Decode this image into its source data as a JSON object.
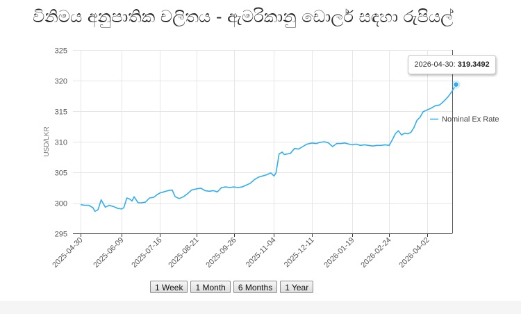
{
  "title": "විනිමය අනුපාතික චලිතය - ඇමරිකානු ඩොලර් සඳහා රුපියල්",
  "tooltip": {
    "date": "2026-04-30:",
    "value": "319.3492"
  },
  "buttons": [
    "1 Week",
    "1 Month",
    "6 Months",
    "1 Year"
  ],
  "colors": {
    "line": "#2eaef0",
    "grid": "#e6e6e6",
    "axis": "#333333"
  },
  "chart_data": {
    "type": "line",
    "title": "විනිමය අනුපාතික චලිතය - ඇමරිකානු ඩොලර් සඳහා රුපියල්",
    "ylabel": "USD/LKR",
    "xlabel": "",
    "ylim": [
      295,
      325
    ],
    "yticks": [
      295,
      300,
      305,
      310,
      315,
      320,
      325
    ],
    "xtick_labels": [
      "2025-04-30",
      "2025-06-09",
      "2025-07-16",
      "2025-08-21",
      "2025-09-26",
      "2025-11-04",
      "2025-12-11",
      "2026-01-19",
      "2026-02-24",
      "2026-04-02"
    ],
    "legend": {
      "position": "right",
      "entries": [
        "Nominal Ex Rate"
      ]
    },
    "grid": true,
    "series": [
      {
        "name": "Nominal Ex Rate",
        "x": [
          "2025-04-30",
          "2025-05-04",
          "2025-05-08",
          "2025-05-12",
          "2025-05-14",
          "2025-05-17",
          "2025-05-20",
          "2025-05-24",
          "2025-05-28",
          "2025-06-01",
          "2025-06-05",
          "2025-06-09",
          "2025-06-11",
          "2025-06-14",
          "2025-06-17",
          "2025-06-19",
          "2025-06-21",
          "2025-06-25",
          "2025-06-28",
          "2025-07-02",
          "2025-07-06",
          "2025-07-10",
          "2025-07-13",
          "2025-07-16",
          "2025-07-20",
          "2025-07-24",
          "2025-07-28",
          "2025-07-31",
          "2025-08-04",
          "2025-08-08",
          "2025-08-12",
          "2025-08-16",
          "2025-08-21",
          "2025-08-25",
          "2025-08-29",
          "2025-09-02",
          "2025-09-06",
          "2025-09-10",
          "2025-09-14",
          "2025-09-18",
          "2025-09-22",
          "2025-09-26",
          "2025-09-30",
          "2025-10-04",
          "2025-10-08",
          "2025-10-12",
          "2025-10-16",
          "2025-10-20",
          "2025-10-24",
          "2025-10-28",
          "2025-11-01",
          "2025-11-04",
          "2025-11-06",
          "2025-11-09",
          "2025-11-12",
          "2025-11-14",
          "2025-11-17",
          "2025-11-20",
          "2025-11-24",
          "2025-11-28",
          "2025-12-02",
          "2025-12-06",
          "2025-12-11",
          "2025-12-15",
          "2025-12-19",
          "2025-12-23",
          "2025-12-27",
          "2025-12-31",
          "2026-01-04",
          "2026-01-08",
          "2026-01-12",
          "2026-01-16",
          "2026-01-19",
          "2026-01-23",
          "2026-01-27",
          "2026-01-31",
          "2026-02-04",
          "2026-02-08",
          "2026-02-12",
          "2026-02-16",
          "2026-02-20",
          "2026-02-24",
          "2026-02-27",
          "2026-03-02",
          "2026-03-05",
          "2026-03-08",
          "2026-03-11",
          "2026-03-14",
          "2026-03-17",
          "2026-03-20",
          "2026-03-23",
          "2026-03-26",
          "2026-03-29",
          "2026-04-02",
          "2026-04-06",
          "2026-04-10",
          "2026-04-14",
          "2026-04-18",
          "2026-04-22",
          "2026-04-26",
          "2026-04-30"
        ],
        "values": [
          299.7,
          299.6,
          299.6,
          299.2,
          298.6,
          298.9,
          300.5,
          299.3,
          299.6,
          299.4,
          299.1,
          299.0,
          299.2,
          300.8,
          300.6,
          300.3,
          301.0,
          300.0,
          300.0,
          300.1,
          300.8,
          300.9,
          301.3,
          301.6,
          301.8,
          302.0,
          302.1,
          301.0,
          300.7,
          301.0,
          301.5,
          302.1,
          302.3,
          302.4,
          302.0,
          301.9,
          302.0,
          301.8,
          302.5,
          302.6,
          302.5,
          302.6,
          302.5,
          302.6,
          302.9,
          303.2,
          303.8,
          304.2,
          304.4,
          304.6,
          304.9,
          304.4,
          304.9,
          308.0,
          308.3,
          307.9,
          308.0,
          308.1,
          308.9,
          308.8,
          309.2,
          309.6,
          309.8,
          309.7,
          309.9,
          310.0,
          309.8,
          309.2,
          309.7,
          309.7,
          309.8,
          309.6,
          309.5,
          309.6,
          309.4,
          309.5,
          309.4,
          309.3,
          309.4,
          309.4,
          309.5,
          309.4,
          310.3,
          311.3,
          311.8,
          311.1,
          311.4,
          311.3,
          311.5,
          312.3,
          313.5,
          314.0,
          314.9,
          315.2,
          315.5,
          315.9,
          316.0,
          316.6,
          317.3,
          318.2,
          319.35
        ]
      }
    ]
  }
}
